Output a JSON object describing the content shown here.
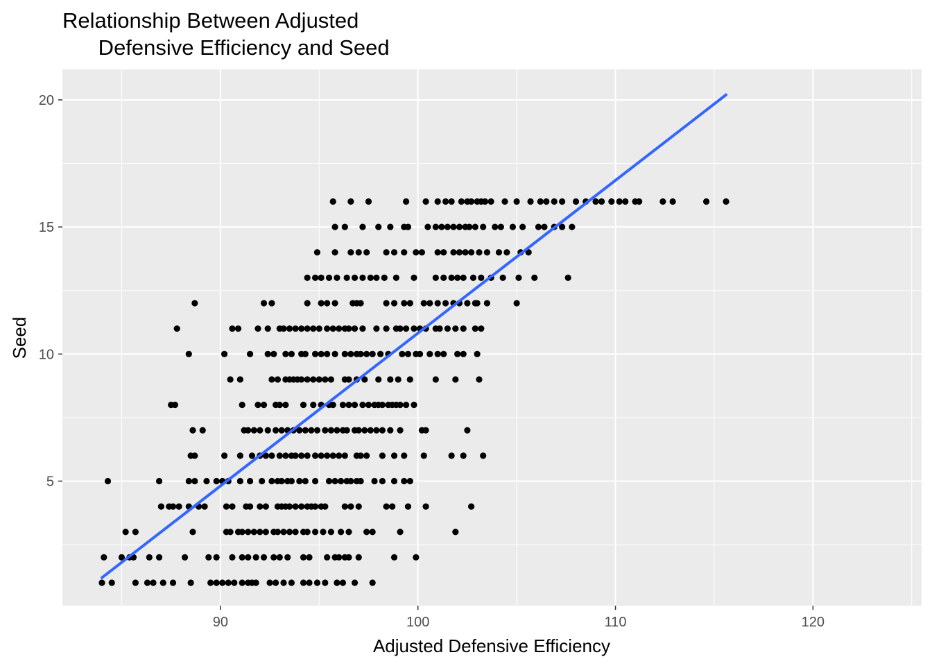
{
  "chart_data": {
    "type": "scatter",
    "title": "Relationship Between Adjusted\n      Defensive Efficiency and Seed",
    "xlabel": "Adjusted Defensive Efficiency",
    "ylabel": "Seed",
    "xlim": [
      82,
      125.5
    ],
    "ylim": [
      0.1,
      21.2
    ],
    "x_ticks": [
      90,
      100,
      110,
      120
    ],
    "y_ticks": [
      5,
      10,
      15,
      20
    ],
    "grid": true,
    "legend": "none",
    "colors": {
      "panel": "#ebebeb",
      "grid_major": "#ffffff",
      "point": "#000000",
      "fit_line": "#3366ff"
    },
    "fit_line": {
      "x": [
        84.0,
        115.6
      ],
      "y": [
        1.2,
        20.2
      ]
    },
    "points": [
      {
        "seed": 16,
        "x": [
          95.7,
          96.6,
          97.5,
          99.4,
          100.4,
          101.0,
          101.4,
          101.7,
          102.2,
          102.5,
          102.7,
          103.0,
          103.2,
          103.4,
          103.7,
          104.4,
          105.0,
          105.7,
          106.2,
          106.5,
          106.9,
          107.3,
          108.0,
          108.5,
          109.0,
          109.3,
          109.8,
          110.2,
          110.5,
          111.0,
          111.2,
          112.4,
          112.9,
          114.6,
          115.6
        ]
      },
      {
        "seed": 15,
        "x": [
          95.8,
          96.3,
          97.2,
          98.0,
          98.6,
          99.3,
          99.5,
          100.5,
          100.9,
          101.2,
          101.5,
          101.8,
          102.1,
          102.4,
          102.6,
          102.9,
          103.3,
          103.9,
          104.2,
          104.8,
          105.3,
          106.1,
          106.4,
          106.9,
          107.3,
          107.8
        ]
      },
      {
        "seed": 14,
        "x": [
          94.9,
          95.8,
          96.6,
          97.0,
          97.4,
          98.4,
          98.8,
          99.3,
          99.9,
          100.2,
          101.0,
          101.3,
          101.8,
          102.1,
          102.4,
          102.7,
          103.1,
          103.5,
          104.1,
          104.5,
          105.2,
          105.6
        ]
      },
      {
        "seed": 13,
        "x": [
          94.4,
          94.8,
          95.1,
          95.5,
          95.9,
          96.4,
          96.8,
          97.2,
          97.6,
          97.9,
          98.3,
          98.9,
          99.8,
          100.9,
          101.3,
          101.7,
          102.0,
          102.3,
          102.8,
          103.2,
          103.7,
          104.3,
          105.1,
          105.9,
          107.6
        ]
      },
      {
        "seed": 12,
        "x": [
          88.7,
          92.2,
          92.6,
          94.4,
          95.1,
          95.4,
          95.8,
          96.7,
          96.9,
          97.1,
          98.4,
          98.8,
          99.3,
          99.6,
          100.3,
          100.6,
          101.0,
          101.4,
          101.8,
          102.1,
          102.5,
          102.9,
          103.0,
          103.5,
          105.0
        ]
      },
      {
        "seed": 11,
        "x": [
          87.8,
          90.6,
          90.9,
          91.9,
          92.4,
          93.0,
          93.2,
          93.5,
          93.8,
          94.1,
          94.4,
          94.7,
          95.0,
          95.4,
          95.7,
          96.0,
          96.3,
          96.5,
          96.8,
          97.2,
          97.9,
          98.4,
          98.9,
          99.1,
          99.4,
          99.8,
          100.1,
          100.4,
          100.9,
          101.1,
          101.5,
          101.9,
          102.3,
          102.9,
          103.2
        ]
      },
      {
        "seed": 10,
        "x": [
          88.4,
          90.2,
          91.5,
          92.4,
          92.7,
          93.3,
          93.6,
          94.1,
          94.3,
          94.8,
          95.1,
          95.4,
          95.8,
          96.3,
          96.6,
          96.9,
          97.1,
          97.4,
          97.7,
          98.1,
          98.5,
          99.2,
          99.5,
          99.9,
          100.1,
          100.6,
          101.0,
          101.3,
          102.0,
          102.3,
          103.0
        ]
      },
      {
        "seed": 9,
        "x": [
          90.5,
          91.0,
          92.6,
          92.9,
          93.3,
          93.5,
          93.7,
          93.9,
          94.1,
          94.4,
          94.7,
          95.0,
          95.3,
          95.6,
          96.3,
          96.5,
          96.9,
          97.3,
          98.0,
          98.6,
          99.0,
          99.6,
          100.9,
          101.9,
          103.1
        ]
      },
      {
        "seed": 8,
        "x": [
          87.5,
          87.7,
          91.1,
          91.9,
          92.2,
          92.8,
          93.0,
          93.3,
          94.2,
          94.7,
          95.1,
          95.5,
          95.7,
          96.2,
          96.5,
          96.8,
          97.2,
          97.5,
          97.8,
          98.0,
          98.2,
          98.5,
          98.7,
          98.9,
          99.1,
          99.4,
          99.8
        ]
      },
      {
        "seed": 7,
        "x": [
          88.6,
          89.1,
          91.2,
          91.4,
          91.7,
          92.0,
          92.4,
          92.8,
          93.1,
          93.4,
          93.7,
          94.0,
          94.3,
          94.6,
          94.9,
          95.3,
          95.6,
          95.9,
          96.2,
          96.4,
          96.8,
          97.0,
          97.3,
          97.6,
          97.9,
          98.2,
          98.6,
          99.1,
          100.2,
          100.4,
          102.5
        ]
      },
      {
        "seed": 6,
        "x": [
          88.5,
          88.7,
          90.2,
          91.0,
          91.6,
          92.0,
          92.3,
          92.6,
          93.0,
          93.3,
          93.6,
          93.8,
          94.1,
          94.4,
          94.8,
          95.1,
          95.4,
          95.7,
          96.0,
          96.3,
          96.9,
          97.1,
          97.4,
          98.2,
          98.8,
          99.3,
          100.3,
          101.7,
          102.3,
          103.3
        ]
      },
      {
        "seed": 5,
        "x": [
          84.3,
          86.9,
          88.4,
          88.7,
          89.3,
          89.8,
          90.1,
          90.4,
          91.0,
          91.5,
          92.1,
          92.6,
          92.9,
          93.1,
          93.4,
          93.6,
          94.0,
          94.3,
          94.8,
          95.5,
          95.8,
          96.1,
          96.4,
          96.6,
          96.9,
          97.1,
          97.8,
          98.2,
          98.8,
          99.3,
          99.6
        ]
      },
      {
        "seed": 4,
        "x": [
          87.0,
          87.4,
          87.6,
          87.9,
          88.4,
          88.9,
          89.2,
          90.3,
          90.6,
          91.3,
          91.5,
          92.0,
          92.3,
          92.9,
          93.1,
          93.3,
          93.5,
          93.8,
          94.1,
          94.4,
          94.6,
          94.8,
          95.1,
          95.3,
          96.3,
          96.6,
          97.0,
          98.4,
          98.7,
          99.5,
          100.4,
          102.7
        ]
      },
      {
        "seed": 3,
        "x": [
          85.2,
          85.7,
          88.6,
          90.3,
          90.5,
          90.9,
          91.1,
          91.4,
          91.7,
          92.0,
          92.3,
          92.7,
          92.9,
          93.2,
          93.5,
          93.8,
          94.2,
          94.4,
          94.8,
          95.2,
          95.6,
          96.1,
          96.5,
          97.4,
          97.7,
          99.1,
          101.9
        ]
      },
      {
        "seed": 2,
        "x": [
          84.1,
          85.0,
          85.4,
          85.6,
          86.4,
          86.9,
          88.2,
          89.4,
          89.8,
          90.6,
          91.1,
          91.4,
          91.8,
          92.2,
          92.7,
          93.0,
          93.4,
          94.2,
          94.5,
          95.4,
          95.8,
          96.0,
          96.3,
          96.5,
          97.0,
          98.8,
          99.9
        ]
      },
      {
        "seed": 1,
        "x": [
          84.0,
          84.5,
          85.7,
          86.3,
          86.6,
          87.1,
          87.6,
          88.5,
          89.5,
          89.8,
          90.1,
          90.4,
          90.7,
          91.1,
          91.4,
          91.6,
          91.8,
          92.5,
          92.8,
          93.2,
          93.6,
          94.2,
          94.5,
          94.9,
          95.3,
          95.9,
          96.2,
          96.8,
          97.7
        ]
      }
    ]
  }
}
